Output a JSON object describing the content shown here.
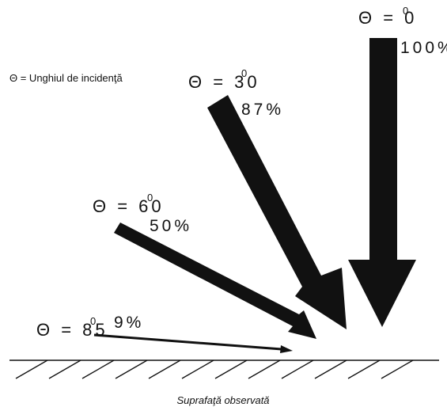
{
  "legend": "Θ = Unghiul de incidenţă",
  "caption": "Suprafaţă observată",
  "rays": [
    {
      "angle_label": "Θ = 0",
      "degree_mark": "0",
      "intensity_label": "100%"
    },
    {
      "angle_label": "Θ = 30",
      "degree_mark": "0",
      "intensity_label": "87%"
    },
    {
      "angle_label": "Θ = 60",
      "degree_mark": "0",
      "intensity_label": "50%"
    },
    {
      "angle_label": "Θ = 85",
      "degree_mark": "0",
      "intensity_label": "9%"
    }
  ],
  "colors": {
    "arrow": "#111111",
    "surface": "#111111",
    "background": "#ffffff"
  }
}
